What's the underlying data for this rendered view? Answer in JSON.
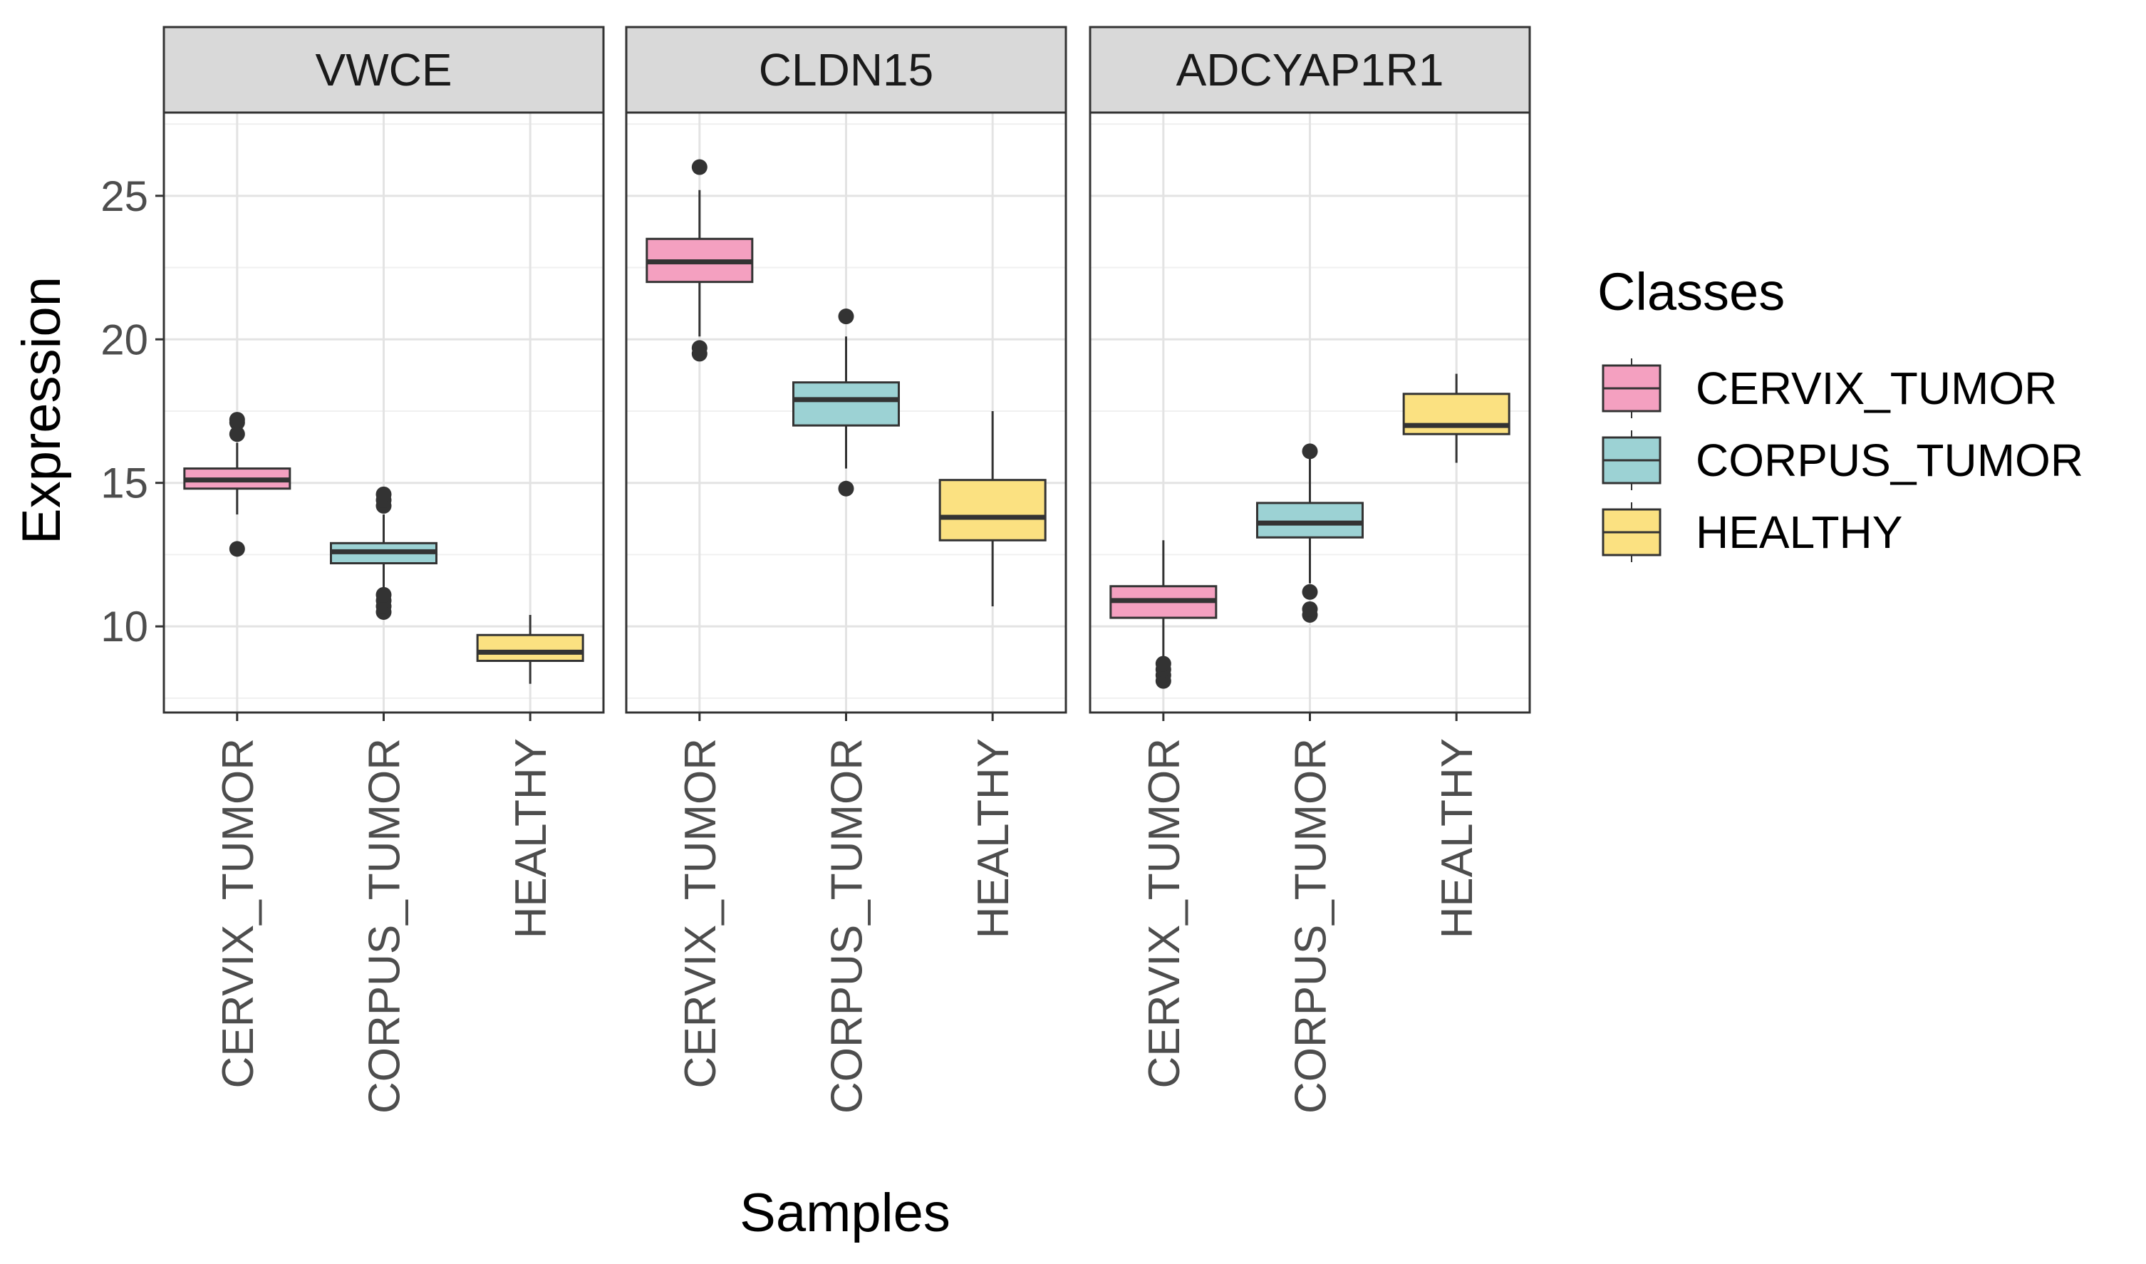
{
  "chart_data": {
    "type": "boxplot",
    "xlabel": "Samples",
    "ylabel": "Expression",
    "ylim": [
      7.0,
      27.9
    ],
    "yticks": [
      10,
      15,
      20,
      25
    ],
    "grid": true,
    "categories": [
      "CERVIX_TUMOR",
      "CORPUS_TUMOR",
      "HEALTHY"
    ],
    "legend": {
      "title": "Classes",
      "position": "right",
      "items": [
        {
          "label": "CERVIX_TUMOR",
          "color": "#F4A0C0"
        },
        {
          "label": "CORPUS_TUMOR",
          "color": "#9CD2D4"
        },
        {
          "label": "HEALTHY",
          "color": "#FBE181"
        }
      ]
    },
    "panels": [
      {
        "title": "VWCE",
        "boxes": [
          {
            "category": "CERVIX_TUMOR",
            "q1": 14.8,
            "median": 15.1,
            "q3": 15.5,
            "whisker_low": 13.9,
            "whisker_high": 16.4,
            "outliers": [
              12.7,
              16.7,
              17.1,
              17.2
            ]
          },
          {
            "category": "CORPUS_TUMOR",
            "q1": 12.2,
            "median": 12.6,
            "q3": 12.9,
            "whisker_low": 11.2,
            "whisker_high": 13.9,
            "outliers": [
              10.5,
              10.7,
              10.9,
              11.1,
              14.2,
              14.4,
              14.6
            ]
          },
          {
            "category": "HEALTHY",
            "q1": 8.8,
            "median": 9.1,
            "q3": 9.7,
            "whisker_low": 8.0,
            "whisker_high": 10.4,
            "outliers": []
          }
        ]
      },
      {
        "title": "CLDN15",
        "boxes": [
          {
            "category": "CERVIX_TUMOR",
            "q1": 22.0,
            "median": 22.7,
            "q3": 23.5,
            "whisker_low": 20.1,
            "whisker_high": 25.2,
            "outliers": [
              19.5,
              19.7,
              26.0
            ]
          },
          {
            "category": "CORPUS_TUMOR",
            "q1": 17.0,
            "median": 17.9,
            "q3": 18.5,
            "whisker_low": 15.5,
            "whisker_high": 20.1,
            "outliers": [
              14.8,
              20.8
            ]
          },
          {
            "category": "HEALTHY",
            "q1": 13.0,
            "median": 13.8,
            "q3": 15.1,
            "whisker_low": 10.7,
            "whisker_high": 17.5,
            "outliers": []
          }
        ]
      },
      {
        "title": "ADCYAP1R1",
        "boxes": [
          {
            "category": "CERVIX_TUMOR",
            "q1": 10.3,
            "median": 10.9,
            "q3": 11.4,
            "whisker_low": 8.8,
            "whisker_high": 13.0,
            "outliers": [
              8.1,
              8.3,
              8.5,
              8.7
            ]
          },
          {
            "category": "CORPUS_TUMOR",
            "q1": 13.1,
            "median": 13.6,
            "q3": 14.3,
            "whisker_low": 11.5,
            "whisker_high": 15.9,
            "outliers": [
              10.4,
              10.6,
              11.2,
              16.1
            ]
          },
          {
            "category": "HEALTHY",
            "q1": 16.7,
            "median": 17.0,
            "q3": 18.1,
            "whisker_low": 15.7,
            "whisker_high": 18.8,
            "outliers": []
          }
        ]
      }
    ]
  }
}
